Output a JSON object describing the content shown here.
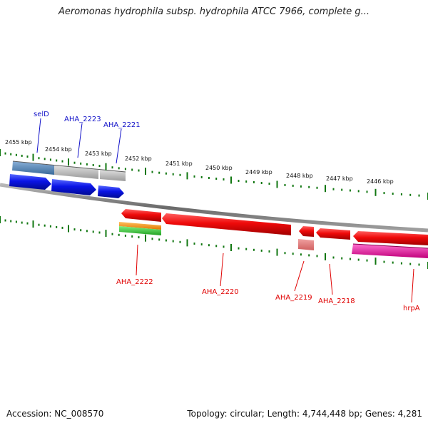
{
  "title": "Aeromonas hydrophila subsp. hydrophila ATCC 7966, complete g...",
  "footer": {
    "accession": "Accession: NC_008570",
    "summary": "Topology: circular; Length: 4,744,448 bp; Genes: 4,281"
  },
  "colors": {
    "forward_label": "#1010c8",
    "reverse_label": "#e00000",
    "forward_gene": "#0a14e6",
    "reverse_gene": "#ef0a0a",
    "backbone": "#808080",
    "tick": "#117711"
  },
  "scale": {
    "tick_labels": [
      "2455 kbp",
      "2454 kbp",
      "2453 kbp",
      "2452 kbp",
      "2451 kbp",
      "2450 kbp",
      "2449 kbp",
      "2448 kbp",
      "2447 kbp",
      "2446 kbp"
    ]
  },
  "forward_genes": [
    {
      "name": "selD"
    },
    {
      "name": "AHA_2223"
    },
    {
      "name": "AHA_2221"
    }
  ],
  "reverse_genes": [
    {
      "name": "AHA_2222"
    },
    {
      "name": "AHA_2220"
    },
    {
      "name": "AHA_2219"
    },
    {
      "name": "AHA_2218"
    },
    {
      "name": "hrpA"
    }
  ]
}
